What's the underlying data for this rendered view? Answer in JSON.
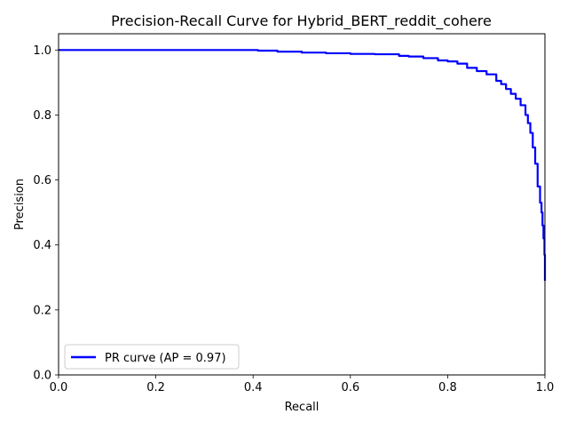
{
  "chart_data": {
    "type": "line",
    "title": "Precision-Recall Curve for Hybrid_BERT_reddit_cohere",
    "xlabel": "Recall",
    "ylabel": "Precision",
    "xlim": [
      0.0,
      1.0
    ],
    "ylim": [
      0.0,
      1.05
    ],
    "x_ticks": [
      "0.0",
      "0.2",
      "0.4",
      "0.6",
      "0.8",
      "1.0"
    ],
    "y_ticks": [
      "0.0",
      "0.2",
      "0.4",
      "0.6",
      "0.8",
      "1.0"
    ],
    "grid": false,
    "legend_position": "lower-left",
    "series": [
      {
        "name": "PR curve (AP = 0.97)",
        "color": "#0000ff",
        "x": [
          0.0,
          0.1,
          0.2,
          0.3,
          0.405,
          0.41,
          0.45,
          0.5,
          0.55,
          0.6,
          0.65,
          0.7,
          0.72,
          0.75,
          0.78,
          0.8,
          0.82,
          0.84,
          0.86,
          0.88,
          0.9,
          0.91,
          0.92,
          0.93,
          0.94,
          0.95,
          0.96,
          0.965,
          0.97,
          0.975,
          0.98,
          0.985,
          0.99,
          0.993,
          0.995,
          0.997,
          0.999,
          1.0
        ],
        "y": [
          1.0,
          1.0,
          1.0,
          1.0,
          1.0,
          0.998,
          0.995,
          0.992,
          0.99,
          0.988,
          0.987,
          0.982,
          0.98,
          0.975,
          0.968,
          0.965,
          0.958,
          0.945,
          0.935,
          0.925,
          0.905,
          0.895,
          0.88,
          0.865,
          0.85,
          0.83,
          0.8,
          0.775,
          0.745,
          0.7,
          0.65,
          0.58,
          0.53,
          0.5,
          0.46,
          0.42,
          0.37,
          0.29
        ]
      }
    ]
  }
}
